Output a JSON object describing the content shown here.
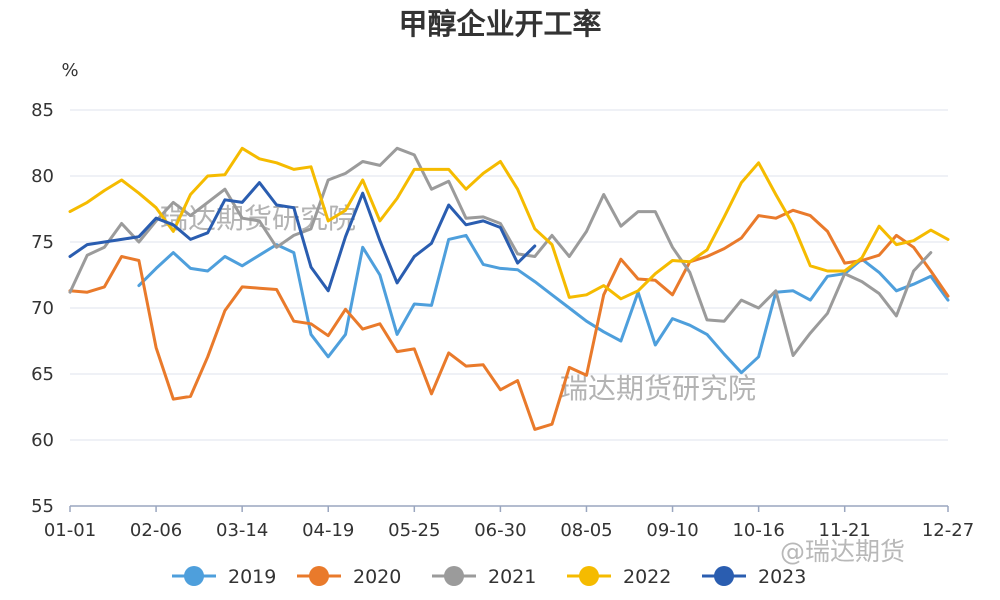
{
  "chart_data": {
    "type": "line",
    "title": "甲醇企业开工率",
    "ylabel": "%",
    "xlabel": "",
    "ylim": [
      55,
      85
    ],
    "yticks": [
      55,
      60,
      65,
      70,
      75,
      80,
      85
    ],
    "xlim": [
      1,
      52
    ],
    "xticks": [
      {
        "week": 1,
        "label": "01-01"
      },
      {
        "week": 6,
        "label": "02-06"
      },
      {
        "week": 11,
        "label": "03-14"
      },
      {
        "week": 16,
        "label": "04-19"
      },
      {
        "week": 21,
        "label": "05-25"
      },
      {
        "week": 26,
        "label": "06-30"
      },
      {
        "week": 31,
        "label": "08-05"
      },
      {
        "week": 36,
        "label": "09-10"
      },
      {
        "week": 41,
        "label": "10-16"
      },
      {
        "week": 46,
        "label": "11-21"
      },
      {
        "week": 52,
        "label": "12-27"
      }
    ],
    "grid": "horizontal",
    "legend": "bottom",
    "watermarks": [
      "瑞达期货研究院",
      "瑞达期货研究院",
      "@瑞达期货"
    ],
    "series": [
      {
        "name": "2019",
        "color": "#4e9fdc",
        "points": [
          [
            5,
            71.7
          ],
          [
            6,
            73
          ],
          [
            7,
            74.2
          ],
          [
            8,
            73
          ],
          [
            9,
            72.8
          ],
          [
            10,
            73.9
          ],
          [
            11,
            73.2
          ],
          [
            12,
            74
          ],
          [
            13,
            74.8
          ],
          [
            14,
            74.2
          ],
          [
            15,
            68
          ],
          [
            16,
            66.3
          ],
          [
            17,
            68
          ],
          [
            18,
            74.6
          ],
          [
            19,
            72.5
          ],
          [
            20,
            68
          ],
          [
            21,
            70.3
          ],
          [
            22,
            70.2
          ],
          [
            23,
            75.2
          ],
          [
            24,
            75.5
          ],
          [
            25,
            73.3
          ],
          [
            26,
            73
          ],
          [
            27,
            72.9
          ],
          [
            28,
            72
          ],
          [
            29,
            71
          ],
          [
            30,
            70
          ],
          [
            31,
            69
          ],
          [
            32,
            68.2
          ],
          [
            33,
            67.5
          ],
          [
            34,
            71.2
          ],
          [
            35,
            67.2
          ],
          [
            36,
            69.2
          ],
          [
            37,
            68.7
          ],
          [
            38,
            68
          ],
          [
            39,
            66.5
          ],
          [
            40,
            65.1
          ],
          [
            41,
            66.3
          ],
          [
            42,
            71.2
          ],
          [
            43,
            71.3
          ],
          [
            44,
            70.6
          ],
          [
            45,
            72.4
          ],
          [
            46,
            72.6
          ],
          [
            47,
            73.7
          ],
          [
            48,
            72.7
          ],
          [
            49,
            71.3
          ],
          [
            50,
            71.8
          ],
          [
            51,
            72.4
          ],
          [
            52,
            70.6
          ]
        ]
      },
      {
        "name": "2020",
        "color": "#e97a2b",
        "points": [
          [
            1,
            71.3
          ],
          [
            2,
            71.2
          ],
          [
            3,
            71.6
          ],
          [
            4,
            73.9
          ],
          [
            5,
            73.6
          ],
          [
            6,
            67
          ],
          [
            7,
            63.1
          ],
          [
            8,
            63.3
          ],
          [
            9,
            66.3
          ],
          [
            10,
            69.8
          ],
          [
            11,
            71.6
          ],
          [
            12,
            71.5
          ],
          [
            13,
            71.4
          ],
          [
            14,
            69
          ],
          [
            15,
            68.8
          ],
          [
            16,
            67.9
          ],
          [
            17,
            69.9
          ],
          [
            18,
            68.4
          ],
          [
            19,
            68.8
          ],
          [
            20,
            66.7
          ],
          [
            21,
            66.9
          ],
          [
            22,
            63.5
          ],
          [
            23,
            66.6
          ],
          [
            24,
            65.6
          ],
          [
            25,
            65.7
          ],
          [
            26,
            63.8
          ],
          [
            27,
            64.5
          ],
          [
            28,
            60.8
          ],
          [
            29,
            61.2
          ],
          [
            30,
            65.5
          ],
          [
            31,
            64.9
          ],
          [
            32,
            71
          ],
          [
            33,
            73.7
          ],
          [
            34,
            72.2
          ],
          [
            35,
            72.1
          ],
          [
            36,
            71
          ],
          [
            37,
            73.5
          ],
          [
            38,
            73.9
          ],
          [
            39,
            74.5
          ],
          [
            40,
            75.3
          ],
          [
            41,
            77
          ],
          [
            42,
            76.8
          ],
          [
            43,
            77.4
          ],
          [
            44,
            77
          ],
          [
            45,
            75.8
          ],
          [
            46,
            73.4
          ],
          [
            47,
            73.6
          ],
          [
            48,
            74
          ],
          [
            49,
            75.5
          ],
          [
            50,
            74.6
          ],
          [
            51,
            72.8
          ],
          [
            52,
            70.9
          ]
        ]
      },
      {
        "name": "2021",
        "color": "#9b9b9b",
        "points": [
          [
            1,
            71.2
          ],
          [
            2,
            74
          ],
          [
            3,
            74.6
          ],
          [
            4,
            76.4
          ],
          [
            5,
            75
          ],
          [
            6,
            76.6
          ],
          [
            7,
            78
          ],
          [
            8,
            77
          ],
          [
            9,
            78
          ],
          [
            10,
            79
          ],
          [
            11,
            76.8
          ],
          [
            12,
            76.6
          ],
          [
            13,
            74.6
          ],
          [
            14,
            75.5
          ],
          [
            15,
            76
          ],
          [
            16,
            79.7
          ],
          [
            17,
            80.2
          ],
          [
            18,
            81.1
          ],
          [
            19,
            80.8
          ],
          [
            20,
            82.1
          ],
          [
            21,
            81.6
          ],
          [
            22,
            79
          ],
          [
            23,
            79.6
          ],
          [
            24,
            76.8
          ],
          [
            25,
            76.9
          ],
          [
            26,
            76.4
          ],
          [
            27,
            74.1
          ],
          [
            28,
            73.9
          ],
          [
            29,
            75.5
          ],
          [
            30,
            73.9
          ],
          [
            31,
            75.8
          ],
          [
            32,
            78.6
          ],
          [
            33,
            76.2
          ],
          [
            34,
            77.3
          ],
          [
            35,
            77.3
          ],
          [
            36,
            74.6
          ],
          [
            37,
            72.7
          ],
          [
            38,
            69.1
          ],
          [
            39,
            69
          ],
          [
            40,
            70.6
          ],
          [
            41,
            70
          ],
          [
            42,
            71.3
          ],
          [
            43,
            66.4
          ],
          [
            44,
            68.1
          ],
          [
            45,
            69.6
          ],
          [
            46,
            72.6
          ],
          [
            47,
            72
          ],
          [
            48,
            71.1
          ],
          [
            49,
            69.4
          ],
          [
            50,
            72.8
          ],
          [
            51,
            74.2
          ]
        ]
      },
      {
        "name": "2022",
        "color": "#f5bb00",
        "points": [
          [
            1,
            77.3
          ],
          [
            2,
            78
          ],
          [
            3,
            78.9
          ],
          [
            4,
            79.7
          ],
          [
            5,
            78.7
          ],
          [
            6,
            77.6
          ],
          [
            7,
            75.8
          ],
          [
            8,
            78.6
          ],
          [
            9,
            80
          ],
          [
            10,
            80.1
          ],
          [
            11,
            82.1
          ],
          [
            12,
            81.3
          ],
          [
            13,
            81
          ],
          [
            14,
            80.5
          ],
          [
            15,
            80.7
          ],
          [
            16,
            76.6
          ],
          [
            17,
            77.4
          ],
          [
            18,
            79.7
          ],
          [
            19,
            76.6
          ],
          [
            20,
            78.3
          ],
          [
            21,
            80.5
          ],
          [
            22,
            80.5
          ],
          [
            23,
            80.5
          ],
          [
            24,
            79
          ],
          [
            25,
            80.2
          ],
          [
            26,
            81.1
          ],
          [
            27,
            79
          ],
          [
            28,
            76
          ],
          [
            29,
            74.8
          ],
          [
            30,
            70.8
          ],
          [
            31,
            71
          ],
          [
            32,
            71.7
          ],
          [
            33,
            70.7
          ],
          [
            34,
            71.3
          ],
          [
            35,
            72.6
          ],
          [
            36,
            73.6
          ],
          [
            37,
            73.5
          ],
          [
            38,
            74.4
          ],
          [
            39,
            76.9
          ],
          [
            40,
            79.5
          ],
          [
            41,
            81
          ],
          [
            42,
            78.6
          ],
          [
            43,
            76.3
          ],
          [
            44,
            73.2
          ],
          [
            45,
            72.8
          ],
          [
            46,
            72.8
          ],
          [
            47,
            73.8
          ],
          [
            48,
            76.2
          ],
          [
            49,
            74.8
          ],
          [
            50,
            75.1
          ],
          [
            51,
            75.9
          ],
          [
            52,
            75.2
          ]
        ]
      },
      {
        "name": "2023",
        "color": "#2a5db0",
        "points": [
          [
            1,
            73.9
          ],
          [
            2,
            74.8
          ],
          [
            3,
            75
          ],
          [
            4,
            75.2
          ],
          [
            5,
            75.4
          ],
          [
            6,
            76.8
          ],
          [
            7,
            76.3
          ],
          [
            8,
            75.2
          ],
          [
            9,
            75.7
          ],
          [
            10,
            78.2
          ],
          [
            11,
            78
          ],
          [
            12,
            79.5
          ],
          [
            13,
            77.8
          ],
          [
            14,
            77.6
          ],
          [
            15,
            73.1
          ],
          [
            16,
            71.3
          ],
          [
            17,
            75.4
          ],
          [
            18,
            78.7
          ],
          [
            19,
            75.1
          ],
          [
            20,
            71.9
          ],
          [
            21,
            73.9
          ],
          [
            22,
            74.9
          ],
          [
            23,
            77.8
          ],
          [
            24,
            76.3
          ],
          [
            25,
            76.6
          ],
          [
            26,
            76.1
          ],
          [
            27,
            73.4
          ],
          [
            28,
            74.7
          ]
        ]
      }
    ]
  }
}
